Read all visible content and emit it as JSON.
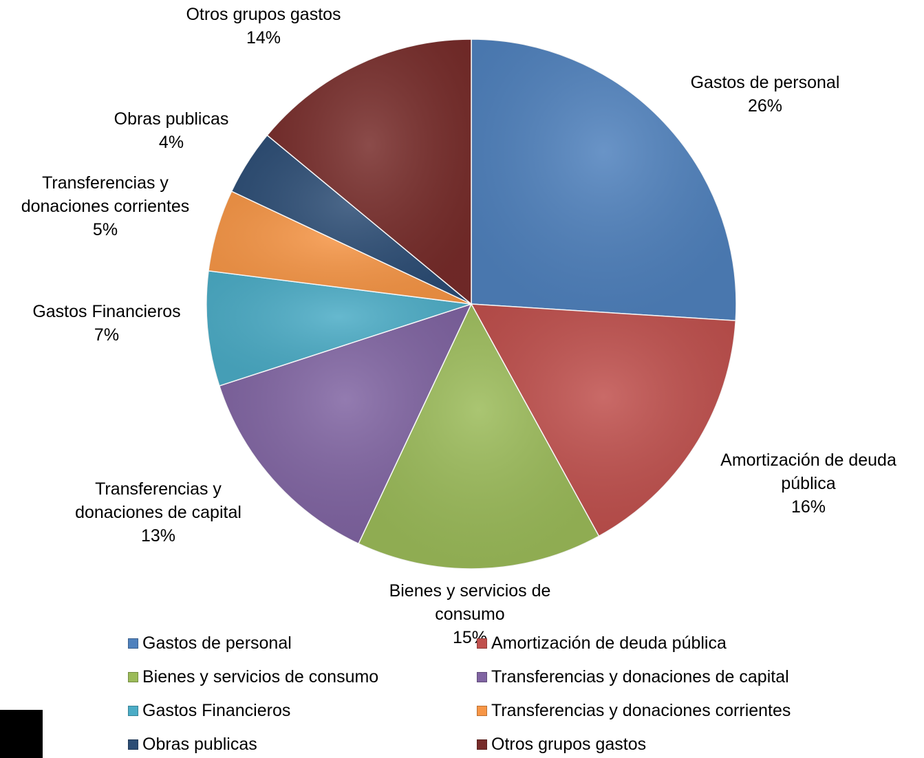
{
  "chart_data": {
    "type": "pie",
    "categories": [
      "Gastos de personal",
      "Amortización de deuda pública",
      "Bienes y servicios de consumo",
      "Transferencias y donaciones de capital",
      "Gastos Financieros",
      "Transferencias y donaciones corrientes",
      "Obras publicas",
      "Otros grupos gastos"
    ],
    "values": [
      26,
      16,
      15,
      13,
      7,
      5,
      4,
      14
    ],
    "value_labels": [
      "26%",
      "16%",
      "15%",
      "13%",
      "7%",
      "5%",
      "4%",
      "14%"
    ],
    "colors": [
      "#4f81bd",
      "#c0504d",
      "#9bbb59",
      "#8064a2",
      "#4bacc6",
      "#f79646",
      "#2c4d75",
      "#772c2a"
    ],
    "legend": "bottom"
  }
}
